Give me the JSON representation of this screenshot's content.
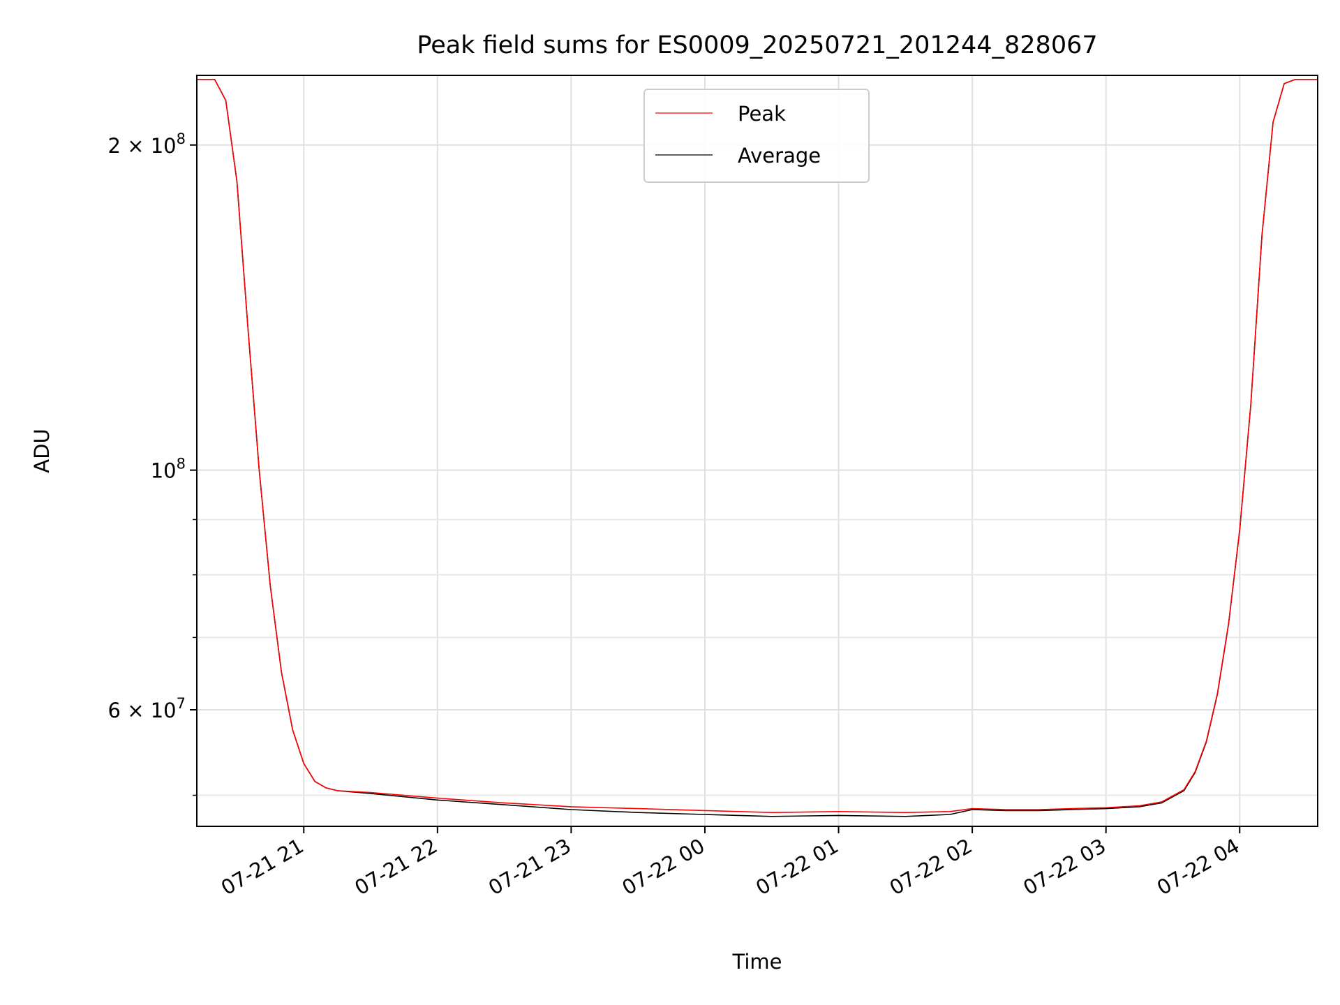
{
  "chart_data": {
    "type": "line",
    "title": "Peak field sums for ES0009_20250721_201244_828067",
    "xlabel": "Time",
    "ylabel": "ADU",
    "y_scale": "log",
    "grid": true,
    "legend_placement": "upper-center",
    "x_range": [
      "2025-07-21 20:12",
      "2025-07-22 04:35"
    ],
    "ylim": [
      46800000,
      232000000
    ],
    "x_ticks": [
      {
        "value": "2025-07-21 21:00",
        "label": "07-21 21"
      },
      {
        "value": "2025-07-21 22:00",
        "label": "07-21 22"
      },
      {
        "value": "2025-07-21 23:00",
        "label": "07-21 23"
      },
      {
        "value": "2025-07-22 00:00",
        "label": "07-22 00"
      },
      {
        "value": "2025-07-22 01:00",
        "label": "07-22 01"
      },
      {
        "value": "2025-07-22 02:00",
        "label": "07-22 02"
      },
      {
        "value": "2025-07-22 03:00",
        "label": "07-22 03"
      },
      {
        "value": "2025-07-22 04:00",
        "label": "07-22 04"
      }
    ],
    "y_ticks": [
      {
        "value": 200000000,
        "mantissa": "2",
        "base": "10",
        "exp": "8"
      },
      {
        "value": 100000000,
        "mantissa": "",
        "base": "10",
        "exp": "8"
      },
      {
        "value": 60000000,
        "mantissa": "6",
        "base": "10",
        "exp": "7"
      }
    ],
    "y_minor_ticks": [
      50000000,
      70000000,
      80000000,
      90000000
    ],
    "colors": {
      "Peak": "#ff0000",
      "Average": "#000000"
    },
    "series": [
      {
        "name": "Average",
        "x": [
          "2025-07-21 20:12",
          "2025-07-21 20:20",
          "2025-07-21 20:25",
          "2025-07-21 20:30",
          "2025-07-21 20:35",
          "2025-07-21 20:40",
          "2025-07-21 20:45",
          "2025-07-21 20:50",
          "2025-07-21 20:55",
          "2025-07-21 21:00",
          "2025-07-21 21:05",
          "2025-07-21 21:10",
          "2025-07-21 21:15",
          "2025-07-21 21:30",
          "2025-07-21 22:00",
          "2025-07-21 22:30",
          "2025-07-21 23:00",
          "2025-07-21 23:30",
          "2025-07-22 00:00",
          "2025-07-22 00:30",
          "2025-07-22 01:00",
          "2025-07-22 01:30",
          "2025-07-22 01:50",
          "2025-07-22 02:00",
          "2025-07-22 02:15",
          "2025-07-22 02:30",
          "2025-07-22 02:45",
          "2025-07-22 03:00",
          "2025-07-22 03:15",
          "2025-07-22 03:25",
          "2025-07-22 03:35",
          "2025-07-22 03:40",
          "2025-07-22 03:45",
          "2025-07-22 03:50",
          "2025-07-22 03:55",
          "2025-07-22 04:00",
          "2025-07-22 04:05",
          "2025-07-22 04:10",
          "2025-07-22 04:15",
          "2025-07-22 04:20",
          "2025-07-22 04:25",
          "2025-07-22 04:35"
        ],
        "y": [
          230000000,
          230000000,
          220000000,
          185000000,
          135000000,
          100000000,
          78000000,
          65000000,
          57500000,
          53500000,
          51500000,
          50800000,
          50500000,
          50200000,
          49500000,
          49000000,
          48500000,
          48200000,
          48000000,
          47800000,
          47900000,
          47800000,
          48000000,
          48500000,
          48400000,
          48400000,
          48500000,
          48600000,
          48800000,
          49200000,
          50500000,
          52500000,
          56000000,
          62000000,
          72000000,
          88000000,
          115000000,
          165000000,
          210000000,
          228000000,
          230000000,
          230000000
        ]
      },
      {
        "name": "Peak",
        "x": [
          "2025-07-21 20:12",
          "2025-07-21 20:20",
          "2025-07-21 20:25",
          "2025-07-21 20:30",
          "2025-07-21 20:35",
          "2025-07-21 20:40",
          "2025-07-21 20:45",
          "2025-07-21 20:50",
          "2025-07-21 20:55",
          "2025-07-21 21:00",
          "2025-07-21 21:05",
          "2025-07-21 21:10",
          "2025-07-21 21:15",
          "2025-07-21 21:30",
          "2025-07-21 22:00",
          "2025-07-21 22:30",
          "2025-07-21 23:00",
          "2025-07-21 23:30",
          "2025-07-22 00:00",
          "2025-07-22 00:30",
          "2025-07-22 01:00",
          "2025-07-22 01:30",
          "2025-07-22 01:50",
          "2025-07-22 02:00",
          "2025-07-22 02:15",
          "2025-07-22 02:30",
          "2025-07-22 02:45",
          "2025-07-22 03:00",
          "2025-07-22 03:15",
          "2025-07-22 03:25",
          "2025-07-22 03:35",
          "2025-07-22 03:40",
          "2025-07-22 03:45",
          "2025-07-22 03:50",
          "2025-07-22 03:55",
          "2025-07-22 04:00",
          "2025-07-22 04:05",
          "2025-07-22 04:10",
          "2025-07-22 04:15",
          "2025-07-22 04:20",
          "2025-07-22 04:25",
          "2025-07-22 04:35"
        ],
        "y": [
          230000000,
          230000000,
          220000000,
          185000000,
          135000000,
          100000000,
          78000000,
          65000000,
          57500000,
          53500000,
          51500000,
          50800000,
          50500000,
          50300000,
          49700000,
          49200000,
          48800000,
          48600000,
          48400000,
          48200000,
          48300000,
          48200000,
          48300000,
          48600000,
          48500000,
          48500000,
          48600000,
          48700000,
          48900000,
          49300000,
          50600000,
          52600000,
          56100000,
          62100000,
          72100000,
          88100000,
          115100000,
          165100000,
          210000000,
          228000000,
          230000000,
          230000000
        ]
      }
    ]
  }
}
